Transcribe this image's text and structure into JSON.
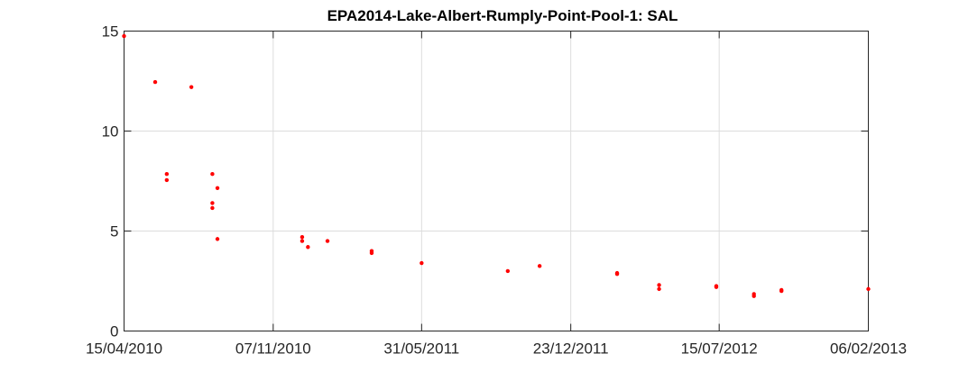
{
  "chart_data": {
    "type": "scatter",
    "title": "EPA2014-Lake-Albert-Rumply-Point-Pool-1: SAL",
    "xlabel": "",
    "ylabel": "",
    "x_axis_type": "date",
    "xlim": [
      "2010-04-15",
      "2013-02-06"
    ],
    "ylim": [
      0,
      15
    ],
    "x_ticks": [
      "2010-04-15",
      "2010-11-07",
      "2011-05-31",
      "2011-12-23",
      "2012-07-15",
      "2013-02-06"
    ],
    "x_tick_labels": [
      "15/04/2010",
      "07/11/2010",
      "31/05/2011",
      "23/12/2011",
      "15/07/2012",
      "06/02/2013"
    ],
    "y_ticks": [
      0,
      5,
      10,
      15
    ],
    "y_tick_labels": [
      "0",
      "5",
      "10",
      "15"
    ],
    "grid": true,
    "marker_color": "#ff0000",
    "series": [
      {
        "points": [
          {
            "x": "2010-04-15",
            "y": 14.75
          },
          {
            "x": "2010-05-28",
            "y": 12.45
          },
          {
            "x": "2010-06-13",
            "y": 7.85
          },
          {
            "x": "2010-06-13",
            "y": 7.55
          },
          {
            "x": "2010-07-17",
            "y": 12.2
          },
          {
            "x": "2010-08-15",
            "y": 7.85
          },
          {
            "x": "2010-08-15",
            "y": 6.4
          },
          {
            "x": "2010-08-15",
            "y": 6.15
          },
          {
            "x": "2010-08-22",
            "y": 7.15
          },
          {
            "x": "2010-08-22",
            "y": 4.6
          },
          {
            "x": "2010-12-17",
            "y": 4.7
          },
          {
            "x": "2010-12-17",
            "y": 4.5
          },
          {
            "x": "2010-12-25",
            "y": 4.2
          },
          {
            "x": "2011-01-21",
            "y": 4.5
          },
          {
            "x": "2011-03-23",
            "y": 4.0
          },
          {
            "x": "2011-03-23",
            "y": 3.9
          },
          {
            "x": "2011-05-31",
            "y": 3.4
          },
          {
            "x": "2011-09-27",
            "y": 3.0
          },
          {
            "x": "2011-11-10",
            "y": 3.25
          },
          {
            "x": "2012-02-25",
            "y": 2.9
          },
          {
            "x": "2012-02-25",
            "y": 2.85
          },
          {
            "x": "2012-04-23",
            "y": 2.3
          },
          {
            "x": "2012-04-23",
            "y": 2.1
          },
          {
            "x": "2012-07-11",
            "y": 2.25
          },
          {
            "x": "2012-07-11",
            "y": 2.2
          },
          {
            "x": "2012-09-01",
            "y": 1.85
          },
          {
            "x": "2012-09-01",
            "y": 1.75
          },
          {
            "x": "2012-10-09",
            "y": 2.05
          },
          {
            "x": "2012-10-09",
            "y": 2.0
          },
          {
            "x": "2013-02-06",
            "y": 2.1
          }
        ]
      }
    ]
  }
}
